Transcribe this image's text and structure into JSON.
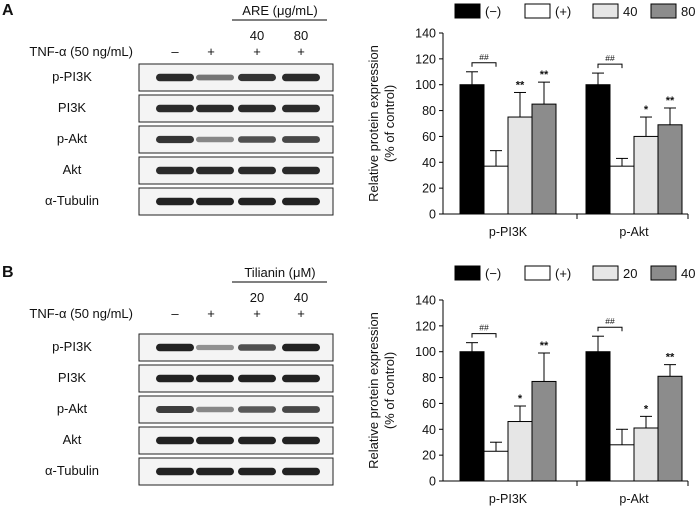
{
  "panels": [
    {
      "letter": "A",
      "treatment_label": "ARE (μg/mL)",
      "treatment_doses": [
        "40",
        "80"
      ],
      "stimulus_label": "TNF-α (50 ng/mL)",
      "stimulus_signs": [
        "–",
        "+",
        "+",
        "+"
      ],
      "blot_rows": [
        {
          "label": "p-PI3K",
          "intensity": [
            0.85,
            0.45,
            0.8,
            0.85
          ]
        },
        {
          "label": "PI3K",
          "intensity": [
            0.85,
            0.85,
            0.85,
            0.85
          ]
        },
        {
          "label": "p-Akt",
          "intensity": [
            0.8,
            0.35,
            0.65,
            0.7
          ]
        },
        {
          "label": "Akt",
          "intensity": [
            0.85,
            0.85,
            0.85,
            0.85
          ]
        },
        {
          "label": "α-Tubulin",
          "intensity": [
            0.9,
            0.9,
            0.9,
            0.9
          ]
        }
      ]
    },
    {
      "letter": "B",
      "treatment_label": "Tilianin (μM)",
      "treatment_doses": [
        "20",
        "40"
      ],
      "stimulus_label": "TNF-α (50 ng/mL)",
      "stimulus_signs": [
        "–",
        "+",
        "+",
        "+"
      ],
      "blot_rows": [
        {
          "label": "p-PI3K",
          "intensity": [
            0.9,
            0.3,
            0.65,
            0.9
          ]
        },
        {
          "label": "PI3K",
          "intensity": [
            0.9,
            0.9,
            0.9,
            0.9
          ]
        },
        {
          "label": "p-Akt",
          "intensity": [
            0.75,
            0.35,
            0.6,
            0.7
          ]
        },
        {
          "label": "Akt",
          "intensity": [
            0.9,
            0.9,
            0.9,
            0.9
          ]
        },
        {
          "label": "α-Tubulin",
          "intensity": [
            0.9,
            0.9,
            0.9,
            0.9
          ]
        }
      ]
    }
  ],
  "chart_data": [
    {
      "type": "bar",
      "panel": "A",
      "categories": [
        "p-PI3K",
        "p-Akt"
      ],
      "legend": [
        "(−)",
        "(+)",
        "40",
        "80"
      ],
      "colors": [
        "#000000",
        "#ffffff",
        "#e6e6e6",
        "#8c8c8c"
      ],
      "series": [
        {
          "name": "(−)",
          "values": [
            100,
            100
          ],
          "errors": [
            10,
            9
          ]
        },
        {
          "name": "(+)",
          "values": [
            37,
            37
          ],
          "errors": [
            12,
            6
          ]
        },
        {
          "name": "40",
          "values": [
            75,
            60
          ],
          "errors": [
            19,
            15
          ]
        },
        {
          "name": "80",
          "values": [
            85,
            69
          ],
          "errors": [
            17,
            13
          ]
        }
      ],
      "annotations": [
        {
          "category": 0,
          "series": 2,
          "text": "**"
        },
        {
          "category": 0,
          "series": 3,
          "text": "**"
        },
        {
          "category": 1,
          "series": 2,
          "text": "*"
        },
        {
          "category": 1,
          "series": 3,
          "text": "**"
        }
      ],
      "brackets": [
        {
          "category": 0,
          "text": "##"
        },
        {
          "category": 1,
          "text": "##"
        }
      ],
      "ylabel": "Relative protein expression",
      "ylabel2": "(% of control)",
      "ylim": [
        0,
        140
      ],
      "yticks": [
        "0",
        "20",
        "40",
        "60",
        "80",
        "100",
        "120",
        "140"
      ]
    },
    {
      "type": "bar",
      "panel": "B",
      "categories": [
        "p-PI3K",
        "p-Akt"
      ],
      "legend": [
        "(−)",
        "(+)",
        "20",
        "40"
      ],
      "colors": [
        "#000000",
        "#ffffff",
        "#e6e6e6",
        "#8c8c8c"
      ],
      "series": [
        {
          "name": "(−)",
          "values": [
            100,
            100
          ],
          "errors": [
            7,
            12
          ]
        },
        {
          "name": "(+)",
          "values": [
            23,
            28
          ],
          "errors": [
            7,
            12
          ]
        },
        {
          "name": "20",
          "values": [
            46,
            41
          ],
          "errors": [
            12,
            9
          ]
        },
        {
          "name": "40",
          "values": [
            77,
            81
          ],
          "errors": [
            22,
            9
          ]
        }
      ],
      "annotations": [
        {
          "category": 0,
          "series": 2,
          "text": "*"
        },
        {
          "category": 0,
          "series": 3,
          "text": "**"
        },
        {
          "category": 1,
          "series": 2,
          "text": "*"
        },
        {
          "category": 1,
          "series": 3,
          "text": "**"
        }
      ],
      "brackets": [
        {
          "category": 0,
          "text": "##"
        },
        {
          "category": 1,
          "text": "##"
        }
      ],
      "ylabel": "Relative protein expression",
      "ylabel2": "(% of control)",
      "ylim": [
        0,
        140
      ],
      "yticks": [
        "0",
        "20",
        "40",
        "60",
        "80",
        "100",
        "120",
        "140"
      ]
    }
  ]
}
